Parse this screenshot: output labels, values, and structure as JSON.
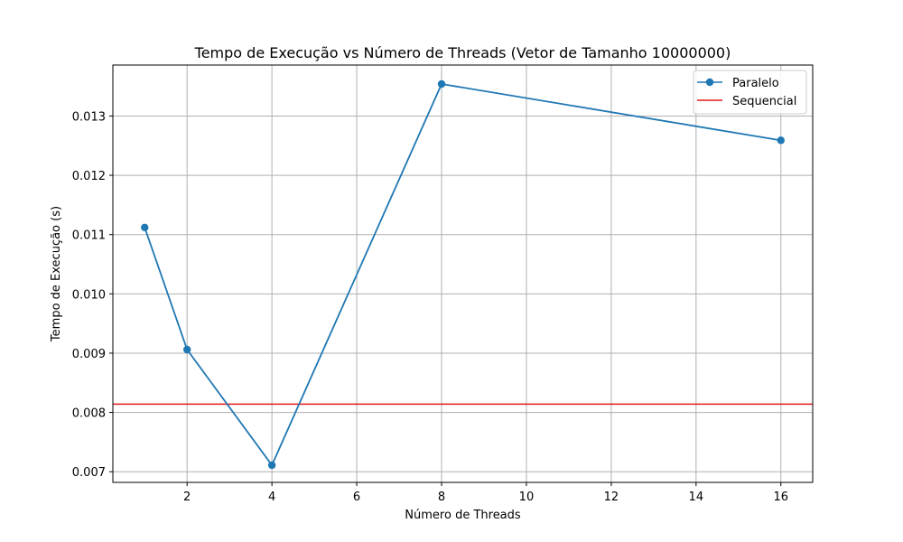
{
  "chart_data": {
    "type": "line",
    "title": "Tempo de Execução vs Número de Threads (Vetor de Tamanho 10000000)",
    "xlabel": "Número de Threads",
    "ylabel": "Tempo de Execução (s)",
    "xlim": [
      0.25,
      16.75
    ],
    "ylim": [
      0.00682,
      0.01386
    ],
    "x_ticks": [
      2,
      4,
      6,
      8,
      10,
      12,
      14,
      16
    ],
    "x_tick_labels": [
      "2",
      "4",
      "6",
      "8",
      "10",
      "12",
      "14",
      "16"
    ],
    "y_ticks": [
      0.007,
      0.008,
      0.009,
      0.01,
      0.011,
      0.012,
      0.013
    ],
    "y_tick_labels": [
      "0.007",
      "0.008",
      "0.009",
      "0.010",
      "0.011",
      "0.012",
      "0.013"
    ],
    "grid": true,
    "legend_position": "top-right",
    "series": [
      {
        "name": "Paralelo",
        "color": "#1f77b4",
        "marker": "circle",
        "x": [
          1,
          2,
          4,
          8,
          16
        ],
        "y": [
          0.01112,
          0.00906,
          0.00711,
          0.01354,
          0.01259
        ]
      }
    ],
    "hlines": [
      {
        "name": "Sequencial",
        "color": "#e41a1c",
        "y": 0.00814
      }
    ]
  }
}
